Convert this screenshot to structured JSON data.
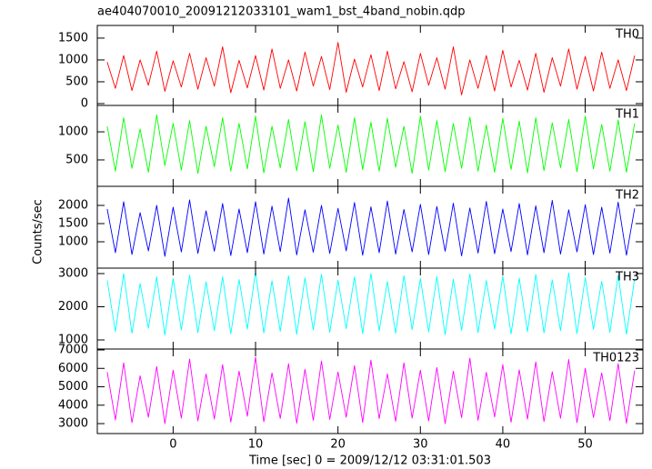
{
  "chart_data": {
    "type": "line",
    "title": "ae404070010_20091212033101_wam1_bst_4band_nobin.qdp",
    "xlabel": "Time [sec] 0 = 2009/12/12 03:31:01.503",
    "ylabel": "Counts/sec",
    "xlim": [
      -9.2,
      57
    ],
    "xticks": [
      0,
      10,
      20,
      30,
      40,
      50
    ],
    "x": [
      -8,
      -7,
      -6,
      -5,
      -4,
      -3,
      -2,
      -1,
      0,
      1,
      2,
      3,
      4,
      5,
      6,
      7,
      8,
      9,
      10,
      11,
      12,
      13,
      14,
      15,
      16,
      17,
      18,
      19,
      20,
      21,
      22,
      23,
      24,
      25,
      26,
      27,
      28,
      29,
      30,
      31,
      32,
      33,
      34,
      35,
      36,
      37,
      38,
      39,
      40,
      41,
      42,
      43,
      44,
      45,
      46,
      47,
      48,
      49,
      50,
      51,
      52,
      53,
      54,
      55,
      56
    ],
    "series": [
      {
        "name": "TH0",
        "color": "#ff0000",
        "ylim": [
          -42,
          1790
        ],
        "yticks": [
          0,
          500,
          1000,
          1500
        ],
        "values": [
          950,
          350,
          1100,
          300,
          1000,
          420,
          1200,
          280,
          980,
          380,
          1150,
          330,
          1050,
          400,
          1300,
          250,
          990,
          360,
          1100,
          310,
          1250,
          350,
          1000,
          290,
          1180,
          400,
          1080,
          320,
          1400,
          260,
          1020,
          380,
          1120,
          300,
          1200,
          340,
          960,
          270,
          1150,
          420,
          1050,
          330,
          1300,
          200,
          1000,
          350,
          1100,
          290,
          1220,
          380,
          990,
          310,
          1150,
          260,
          1050,
          400,
          1250,
          330,
          1080,
          290,
          1180,
          350,
          1000,
          300,
          1100
        ]
      },
      {
        "name": "TH1",
        "color": "#00ff00",
        "ylim": [
          30,
          1470
        ],
        "yticks": [
          500,
          1000
        ],
        "values": [
          1100,
          300,
          1250,
          350,
          1050,
          280,
          1300,
          400,
          1150,
          320,
          1200,
          260,
          1100,
          380,
          1250,
          300,
          1150,
          340,
          1280,
          270,
          1100,
          360,
          1220,
          310,
          1180,
          290,
          1300,
          350,
          1120,
          280,
          1250,
          330,
          1170,
          300,
          1240,
          370,
          1100,
          260,
          1280,
          320,
          1200,
          290,
          1150,
          350,
          1260,
          300,
          1120,
          280,
          1240,
          330,
          1190,
          270,
          1250,
          310,
          1160,
          360,
          1220,
          290,
          1280,
          340,
          1130,
          300,
          1210,
          280,
          1150
        ]
      },
      {
        "name": "TH2",
        "color": "#0000ff",
        "ylim": [
          275,
          2525
        ],
        "yticks": [
          1000,
          1500,
          2000
        ],
        "values": [
          1900,
          700,
          2100,
          650,
          1800,
          750,
          2000,
          600,
          1950,
          720,
          2150,
          680,
          1850,
          740,
          2050,
          620,
          1900,
          700,
          2100,
          660,
          1980,
          730,
          2200,
          640,
          1880,
          710,
          2000,
          680,
          1920,
          750,
          2080,
          630,
          1960,
          700,
          2120,
          660,
          1890,
          720,
          2030,
          650,
          1970,
          740,
          2060,
          610,
          1930,
          690,
          2110,
          670,
          1900,
          730,
          2050,
          640,
          1990,
          700,
          2140,
          660,
          1880,
          720,
          2020,
          650,
          1950,
          690,
          2090,
          630,
          1920
        ]
      },
      {
        "name": "TH3",
        "color": "#00ffff",
        "ylim": [
          726,
          3164
        ],
        "yticks": [
          1000,
          2000,
          3000
        ],
        "values": [
          2800,
          1250,
          3000,
          1200,
          2700,
          1350,
          2900,
          1150,
          2850,
          1300,
          2950,
          1220,
          2750,
          1280,
          2900,
          1180,
          2820,
          1330,
          3050,
          1210,
          2780,
          1260,
          2930,
          1170,
          2870,
          1300,
          2980,
          1230,
          2800,
          1340,
          2900,
          1190,
          3000,
          1270,
          2760,
          1200,
          2940,
          1310,
          2850,
          1240,
          2910,
          1160,
          2830,
          1290,
          2990,
          1220,
          2790,
          1330,
          2920,
          1180,
          2860,
          1250,
          2970,
          1210,
          2810,
          1280,
          3020,
          1190,
          2880,
          1320,
          2770,
          1230,
          2950,
          1170,
          2840
        ]
      },
      {
        "name": "TH0123",
        "color": "#ff00ff",
        "ylim": [
          2460,
          7050
        ],
        "yticks": [
          3000,
          4000,
          5000,
          6000,
          7000
        ],
        "values": [
          5800,
          3200,
          6300,
          3050,
          5600,
          3350,
          6100,
          3000,
          5900,
          3300,
          6500,
          3150,
          5700,
          3250,
          6200,
          3080,
          5850,
          3400,
          6600,
          3100,
          5750,
          3280,
          6250,
          3020,
          5950,
          3180,
          6400,
          3230,
          5800,
          3350,
          6150,
          3060,
          6450,
          3270,
          5700,
          3120,
          6300,
          3300,
          5900,
          3150,
          6050,
          3000,
          5850,
          3320,
          6550,
          3180,
          5780,
          3360,
          6200,
          3070,
          5920,
          3240,
          6350,
          3110,
          5820,
          3290,
          6480,
          3050,
          6000,
          3330,
          5750,
          3160,
          6250,
          3020,
          5880
        ]
      }
    ]
  }
}
